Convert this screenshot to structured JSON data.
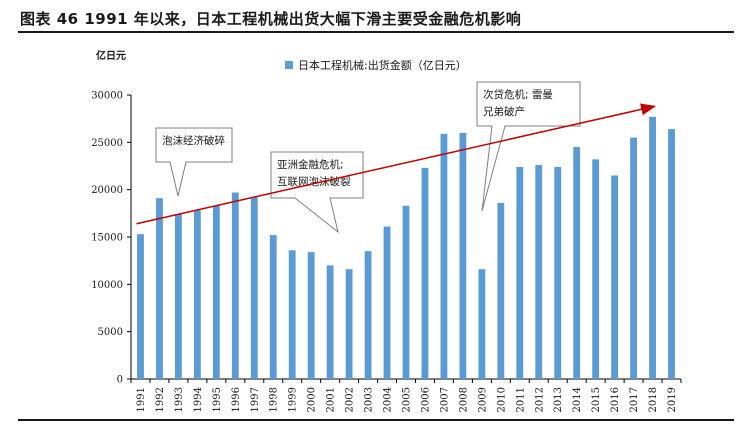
{
  "figure": {
    "title": "图表 46   1991 年以来，日本工程机械出货大幅下滑主要受金融危机影响"
  },
  "colors": {
    "bar": "#5B9BD5",
    "trend": "#C00000",
    "axis": "#000000",
    "callout_border": "#7F7F7F"
  },
  "chart_data": {
    "type": "bar",
    "title": "",
    "unit_label": "亿日元",
    "xlabel": "",
    "ylabel": "亿日元",
    "ylim": [
      0,
      30000
    ],
    "yticks": [
      0,
      5000,
      10000,
      15000,
      20000,
      25000,
      30000
    ],
    "grid": false,
    "legend_position": "top-center",
    "categories": [
      "1991",
      "1992",
      "1993",
      "1994",
      "1995",
      "1996",
      "1997",
      "1998",
      "1999",
      "2000",
      "2001",
      "2002",
      "2003",
      "2004",
      "2005",
      "2006",
      "2007",
      "2008",
      "2009",
      "2010",
      "2011",
      "2012",
      "2013",
      "2014",
      "2015",
      "2016",
      "2017",
      "2018",
      "2019"
    ],
    "series": [
      {
        "name": "日本工程机械:出货金额（亿日元）",
        "values": [
          15300,
          19100,
          17400,
          17800,
          18300,
          19700,
          19200,
          15200,
          13600,
          13400,
          12000,
          11600,
          13500,
          16100,
          18300,
          22300,
          25900,
          26000,
          11600,
          18600,
          22400,
          22600,
          22400,
          24500,
          23200,
          21500,
          25500,
          27700,
          26400
        ]
      }
    ],
    "trendline": {
      "from": [
        "1991",
        16400
      ],
      "to": [
        "2018",
        28800
      ]
    },
    "annotations": [
      {
        "lines": [
          "泡沫经济破碎"
        ],
        "target": "1993"
      },
      {
        "lines": [
          "亚洲金融危机;",
          "互联网泡沫破裂"
        ],
        "target": "2001"
      },
      {
        "lines": [
          "次贷危机; 雷曼",
          "兄弟破产"
        ],
        "target": "2009"
      }
    ]
  }
}
